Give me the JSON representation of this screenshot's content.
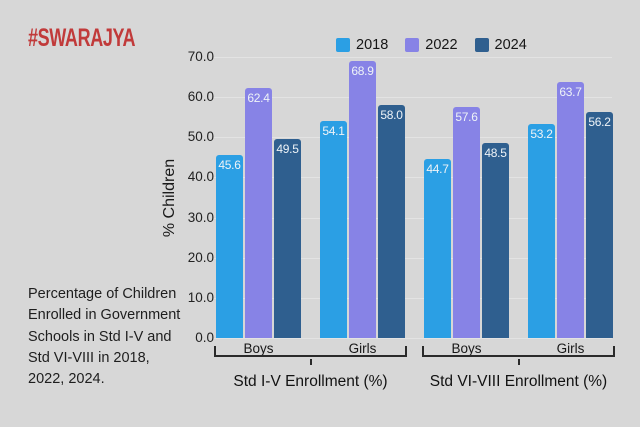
{
  "logo": {
    "text": "#SWARAJYA"
  },
  "caption": {
    "text": "Percentage of Children Enrolled in Government Schools in Std I-V and Std VI-VIII in 2018, 2022, 2024."
  },
  "colors": {
    "background": "#d7d7d7",
    "brand_red": "#c13a3a",
    "gridline": "#e3e3e3",
    "bracket": "#2a2a2a",
    "series_2018": "#2b9fe4",
    "series_2022": "#8783e6",
    "series_2024": "#2f5f8f"
  },
  "chart_data": {
    "type": "bar",
    "title": "",
    "xlabel": "",
    "ylabel": "% Children",
    "ylim": [
      0,
      70
    ],
    "yticks": [
      "0.0",
      "10.0",
      "20.0",
      "30.0",
      "40.0",
      "50.0",
      "60.0",
      "70.0"
    ],
    "grid": true,
    "legend_position": "top",
    "groups": [
      {
        "label": "Std I-V Enrollment (%)",
        "categories": [
          "Boys",
          "Girls"
        ]
      },
      {
        "label": "Std VI-VIII Enrollment (%)",
        "categories": [
          "Boys",
          "Girls"
        ]
      }
    ],
    "categories": [
      "Boys (Std I-V)",
      "Girls (Std I-V)",
      "Boys (Std VI-VIII)",
      "Girls (Std VI-VIII)"
    ],
    "series": [
      {
        "name": "2018",
        "color": "#2b9fe4",
        "values": [
          45.6,
          54.1,
          44.7,
          53.2
        ]
      },
      {
        "name": "2022",
        "color": "#8783e6",
        "values": [
          62.4,
          68.9,
          57.6,
          63.7
        ]
      },
      {
        "name": "2024",
        "color": "#2f5f8f",
        "values": [
          49.5,
          58.0,
          48.5,
          56.2
        ]
      }
    ]
  }
}
